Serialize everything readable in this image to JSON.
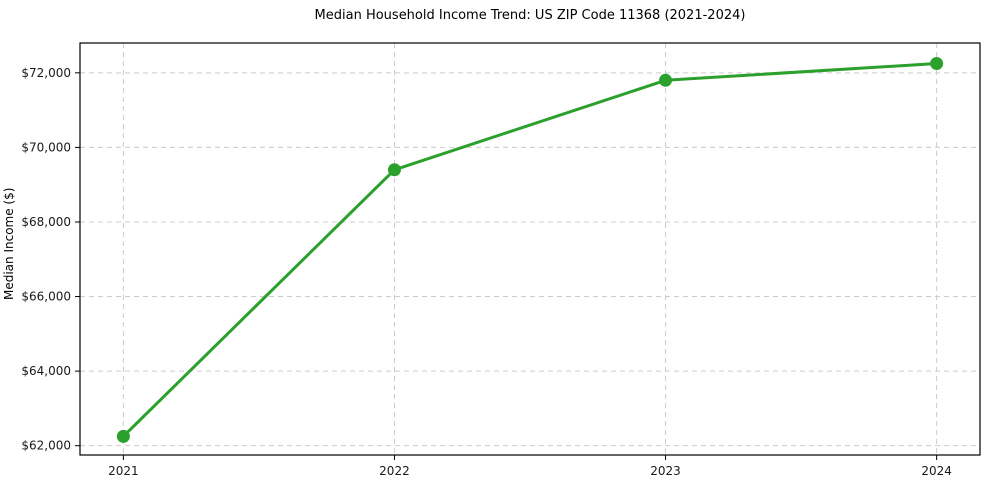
{
  "figure": {
    "title": "Median Household Income Trend: US ZIP Code 11368 (2021-2024)",
    "ylabel": "Median Income ($)"
  },
  "chart_data": {
    "type": "line",
    "title": "Median Household Income Trend: US ZIP Code 11368 (2021-2024)",
    "xlabel": "",
    "ylabel": "Median Income ($)",
    "x": [
      2021,
      2022,
      2023,
      2024
    ],
    "x_tick_labels": [
      "2021",
      "2022",
      "2023",
      "2024"
    ],
    "series": [
      {
        "name": "Median Household Income",
        "values": [
          62250,
          69400,
          71800,
          72250
        ]
      }
    ],
    "y_ticks": [
      62000,
      64000,
      66000,
      68000,
      70000,
      72000
    ],
    "y_tick_labels": [
      "$62,000",
      "$64,000",
      "$66,000",
      "$68,000",
      "$70,000",
      "$72,000"
    ],
    "xlim": [
      2020.84,
      2024.16
    ],
    "ylim": [
      61750,
      72800
    ],
    "grid": true,
    "grid_style": "dashed",
    "legend": "none",
    "line_color": "#2ca02c",
    "marker": "o",
    "marker_radius": 6.5,
    "line_width": 3,
    "grid_color": "#cccccc",
    "spine_color": "#000000",
    "tick_color": "#000000",
    "tick_label_color": "#1a1a1a",
    "background": "#ffffff"
  }
}
